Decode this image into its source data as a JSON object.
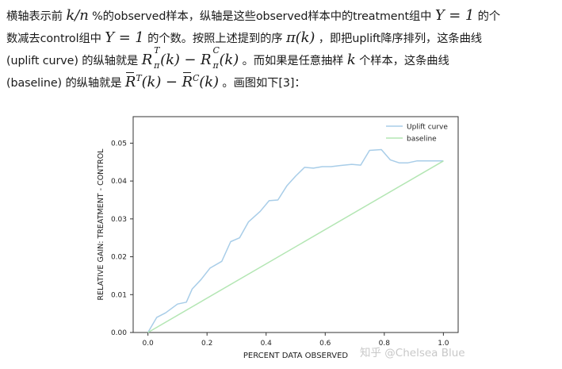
{
  "text": {
    "l1_a": "横轴表示前 ",
    "l1_m1": "k/n",
    "l1_b": " %的observed样本，纵轴是这些observed样本中的treatment组中 ",
    "l1_m2": "Y = 1",
    "l1_c": " 的个",
    "l2_a": "数减去control组中 ",
    "l2_m1": "Y = 1",
    "l2_b": " 的个数。按照上述提到的序 ",
    "l2_m2": "π(k)",
    "l2_c": " ，即把uplift降序排列，这条曲线",
    "l3_a": "(uplift curve) 的纵轴就是 ",
    "l3_R1": "R",
    "l3_sup1": "T",
    "l3_sub1": "π",
    "l3_k1": "(k) − ",
    "l3_R2": "R",
    "l3_sup2": "C",
    "l3_sub2": "π",
    "l3_k2": "(k)",
    "l3_b": " 。而如果是任意抽样 ",
    "l3_m3": "k",
    "l3_c": " 个样本，这条曲线",
    "l4_a": "(baseline) 的纵轴就是 ",
    "l4_R1": "R",
    "l4_sup1": "T",
    "l4_k1": "(k) − ",
    "l4_R2": "R",
    "l4_sup2": "C",
    "l4_k2": "(k)",
    "l4_b": " 。画图如下[3]："
  },
  "watermark": "知乎 @Chelsea Blue",
  "colors": {
    "uplift": "#a8cde8",
    "baseline": "#b3e6b3",
    "axis": "#333333"
  },
  "chart_data": {
    "type": "line",
    "xlabel": "PERCENT DATA OBSERVED",
    "ylabel": "RELATIVE GAIN: TREATMENT - CONTROL",
    "xlim": [
      -0.05,
      1.05
    ],
    "ylim": [
      0,
      0.057
    ],
    "xticks": [
      0.0,
      0.2,
      0.4,
      0.6,
      0.8,
      1.0
    ],
    "xtick_labels": [
      "0.0",
      "0.2",
      "0.4",
      "0.6",
      "0.8",
      "1.0"
    ],
    "yticks": [
      0.0,
      0.01,
      0.02,
      0.03,
      0.04,
      0.05
    ],
    "ytick_labels": [
      "0.00",
      "0.01",
      "0.02",
      "0.03",
      "0.04",
      "0.05"
    ],
    "grid": false,
    "legend": "top-right",
    "series": [
      {
        "name": "Uplift curve",
        "x": [
          0.0,
          0.03,
          0.06,
          0.1,
          0.13,
          0.15,
          0.18,
          0.21,
          0.25,
          0.28,
          0.31,
          0.34,
          0.38,
          0.41,
          0.44,
          0.47,
          0.5,
          0.53,
          0.56,
          0.59,
          0.62,
          0.65,
          0.69,
          0.72,
          0.75,
          0.79,
          0.82,
          0.85,
          0.88,
          0.91,
          0.94,
          0.97,
          1.0
        ],
        "y": [
          0.0,
          0.004,
          0.0052,
          0.0075,
          0.008,
          0.0115,
          0.014,
          0.017,
          0.0188,
          0.024,
          0.025,
          0.0292,
          0.032,
          0.0348,
          0.035,
          0.0387,
          0.0413,
          0.0436,
          0.0434,
          0.0438,
          0.0438,
          0.0441,
          0.0444,
          0.0442,
          0.0481,
          0.0483,
          0.0456,
          0.0448,
          0.0448,
          0.0453,
          0.0453,
          0.0453,
          0.0453
        ]
      },
      {
        "name": "baseline",
        "x": [
          0.0,
          1.0
        ],
        "y": [
          0.0,
          0.0453
        ]
      }
    ]
  }
}
